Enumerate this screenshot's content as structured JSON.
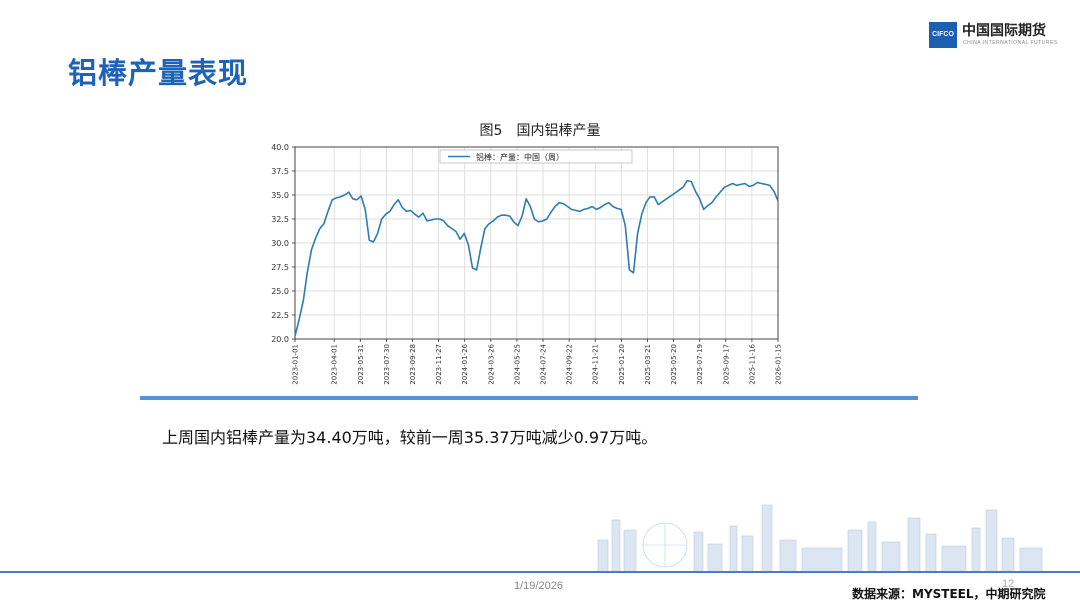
{
  "header": {
    "title": "铝棒产量表现",
    "logo_cn": "中国国际期货",
    "logo_en": "CHINA INTERNATIONAL FUTURES",
    "logo_mark": "CIFCO"
  },
  "figure": {
    "title": "图5　国内铝棒产量"
  },
  "summary": "上周国内铝棒产量为34.40万吨，较前一周35.37万吨减少0.97万吨。",
  "footer": {
    "date": "1/19/2026",
    "page": "12",
    "source": "数据来源：MYSTEEL，中期研究院"
  },
  "colors": {
    "accent": "#1f63b6",
    "line": "#2f7bb4",
    "divider": "#5b8fd6"
  },
  "chart_data": {
    "type": "line",
    "title": "",
    "xlabel": "",
    "ylabel": "",
    "ylim": [
      20.0,
      40.0
    ],
    "yticks": [
      "20.0",
      "22.5",
      "25.0",
      "27.5",
      "30.0",
      "32.5",
      "35.0",
      "37.5",
      "40.0"
    ],
    "xticks": [
      "2023-01-01",
      "2023-04-01",
      "2023-05-31",
      "2023-07-30",
      "2023-09-28",
      "2023-11-27",
      "2024-01-26",
      "2024-03-26",
      "2024-05-25",
      "2024-07-24",
      "2024-09-22",
      "2024-11-21",
      "2025-01-20",
      "2025-03-21",
      "2025-05-20",
      "2025-07-19",
      "2025-09-17",
      "2025-11-16",
      "2026-01-15"
    ],
    "grid": true,
    "legend": "top-center",
    "series": [
      {
        "name": "铝棒：产量：中国（周）",
        "x_start": "2023-01-01",
        "x_end": "2026-01-15",
        "values": [
          20.3,
          22.0,
          24.0,
          27.0,
          29.3,
          30.5,
          31.5,
          32.0,
          33.3,
          34.5,
          34.7,
          34.8,
          35.0,
          35.3,
          34.6,
          34.5,
          34.9,
          33.5,
          30.3,
          30.1,
          31.0,
          32.5,
          33.0,
          33.3,
          34.0,
          34.5,
          33.7,
          33.3,
          33.4,
          33.0,
          32.7,
          33.1,
          32.3,
          32.4,
          32.5,
          32.5,
          32.3,
          31.8,
          31.5,
          31.2,
          30.4,
          31.0,
          29.8,
          27.4,
          27.2,
          29.5,
          31.5,
          32.0,
          32.3,
          32.7,
          32.9,
          32.9,
          32.8,
          32.2,
          31.8,
          32.8,
          34.6,
          33.8,
          32.5,
          32.2,
          32.3,
          32.5,
          33.2,
          33.8,
          34.2,
          34.1,
          33.8,
          33.5,
          33.4,
          33.3,
          33.5,
          33.6,
          33.8,
          33.5,
          33.7,
          34.0,
          34.2,
          33.8,
          33.6,
          33.5,
          31.8,
          27.2,
          26.9,
          31.0,
          33.0,
          34.2,
          34.8,
          34.8,
          34.0,
          34.3,
          34.6,
          34.9,
          35.2,
          35.5,
          35.8,
          36.5,
          36.4,
          35.4,
          34.6,
          33.5,
          33.9,
          34.2,
          34.8,
          35.3,
          35.8,
          36.0,
          36.2,
          36.0,
          36.1,
          36.2,
          35.9,
          36.0,
          36.3,
          36.2,
          36.1,
          36.0,
          35.4,
          34.4
        ]
      }
    ]
  }
}
